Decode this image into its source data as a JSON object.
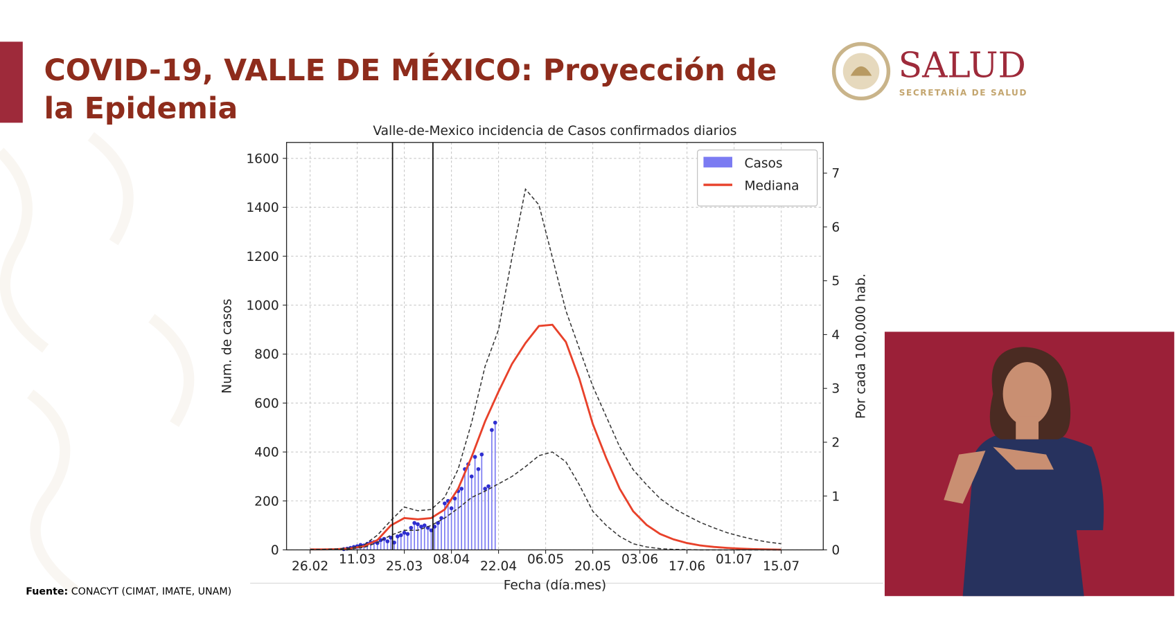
{
  "header": {
    "title_lines": [
      "COVID-19, VALLE DE MÉXICO: Proyección de",
      "la Epidemia"
    ],
    "logo_title": "SALUD",
    "logo_subtitle": "SECRETARÍA DE SALUD"
  },
  "footer": {
    "source_label": "Fuente:",
    "source": "CONACYT (CIMAT, IMATE, UNAM)"
  },
  "chart_data": {
    "type": "line",
    "title": "Valle-de-Mexico incidencia de Casos confirmados diarios",
    "x_label": "Fecha (día.mes)",
    "y_label": "Num. de casos",
    "y2_label": "Por cada 100,000 hab.",
    "xlim": [
      -7,
      152.5
    ],
    "ylim": [
      0,
      1665
    ],
    "y2lim": [
      0,
      7.57
    ],
    "xticks": [
      {
        "value": 0,
        "label": "26.02"
      },
      {
        "value": 14,
        "label": "11.03"
      },
      {
        "value": 28,
        "label": "25.03"
      },
      {
        "value": 42,
        "label": "08.04"
      },
      {
        "value": 56,
        "label": "22.04"
      },
      {
        "value": 70,
        "label": "06.05"
      },
      {
        "value": 84,
        "label": "20.05"
      },
      {
        "value": 98,
        "label": "03.06"
      },
      {
        "value": 112,
        "label": "17.06"
      },
      {
        "value": 126,
        "label": "01.07"
      },
      {
        "value": 140,
        "label": "15.07"
      }
    ],
    "yticks": [
      0,
      200,
      400,
      600,
      800,
      1000,
      1200,
      1400,
      1600
    ],
    "y2ticks": [
      0,
      1,
      2,
      3,
      4,
      5,
      6,
      7
    ],
    "grid": true,
    "legend": "upper right",
    "vlines": [
      24.5,
      36.5
    ],
    "series": [
      {
        "name": "Casos",
        "type": "bar",
        "color": "#7b7bf2",
        "x": [
          10,
          11,
          12,
          13,
          14,
          15,
          16,
          17,
          18,
          19,
          20,
          21,
          22,
          23,
          24,
          25,
          26,
          27,
          28,
          29,
          30,
          31,
          32,
          33,
          34,
          35,
          36,
          37,
          38,
          39,
          40,
          41,
          42,
          43,
          44,
          45,
          46,
          47,
          48,
          49,
          50,
          51,
          52,
          53,
          54,
          55
        ],
        "values": [
          3,
          5,
          8,
          12,
          15,
          20,
          18,
          25,
          30,
          32,
          28,
          40,
          45,
          35,
          50,
          30,
          55,
          60,
          70,
          65,
          90,
          110,
          105,
          95,
          100,
          90,
          80,
          95,
          110,
          130,
          190,
          200,
          170,
          210,
          240,
          250,
          330,
          350,
          300,
          380,
          330,
          390,
          250,
          260,
          490,
          520
        ]
      },
      {
        "name": "Mediana",
        "type": "line",
        "color": "#e8412a",
        "x": [
          0,
          4,
          8,
          12,
          16,
          20,
          24,
          28,
          32,
          36,
          40,
          44,
          48,
          52,
          56,
          60,
          64,
          68,
          72,
          76,
          80,
          84,
          88,
          92,
          96,
          100,
          104,
          108,
          112,
          116,
          120,
          124,
          128,
          132,
          136,
          140
        ],
        "values": [
          2,
          2,
          3,
          6,
          15,
          40,
          100,
          130,
          125,
          130,
          165,
          250,
          380,
          525,
          647,
          760,
          845,
          915,
          920,
          850,
          700,
          515,
          375,
          250,
          158,
          102,
          65,
          43,
          28,
          18,
          12,
          8,
          5,
          3,
          2,
          1
        ]
      },
      {
        "type": "line",
        "color": "#333333",
        "dash": true,
        "x": [
          0,
          4,
          8,
          12,
          16,
          20,
          24,
          28,
          32,
          36,
          40,
          44,
          48,
          52,
          56,
          60,
          64,
          68,
          72,
          76,
          80,
          84,
          88,
          92,
          96,
          100,
          104,
          108,
          112,
          116,
          120,
          124,
          128,
          132,
          136,
          140
        ],
        "values": [
          2,
          2,
          4,
          8,
          20,
          60,
          120,
          175,
          160,
          165,
          215,
          330,
          520,
          750,
          900,
          1195,
          1474,
          1410,
          1195,
          978,
          823,
          669,
          545,
          421,
          328,
          266,
          210,
          170,
          140,
          112,
          90,
          70,
          55,
          42,
          32,
          25
        ]
      },
      {
        "type": "line",
        "color": "#333333",
        "dash": true,
        "x": [
          0,
          4,
          8,
          12,
          16,
          20,
          24,
          28,
          32,
          36,
          40,
          44,
          48,
          52,
          56,
          60,
          64,
          68,
          72,
          76,
          80,
          84,
          88,
          92,
          96,
          100,
          104,
          108,
          112,
          116,
          120,
          124,
          128,
          132,
          136,
          140
        ],
        "values": [
          1,
          1,
          2,
          4,
          10,
          30,
          60,
          80,
          80,
          100,
          130,
          170,
          214,
          240,
          270,
          300,
          340,
          385,
          400,
          360,
          266,
          158,
          100,
          55,
          25,
          12,
          5,
          2,
          1,
          0,
          0,
          0,
          0,
          0,
          0,
          0
        ]
      }
    ]
  }
}
